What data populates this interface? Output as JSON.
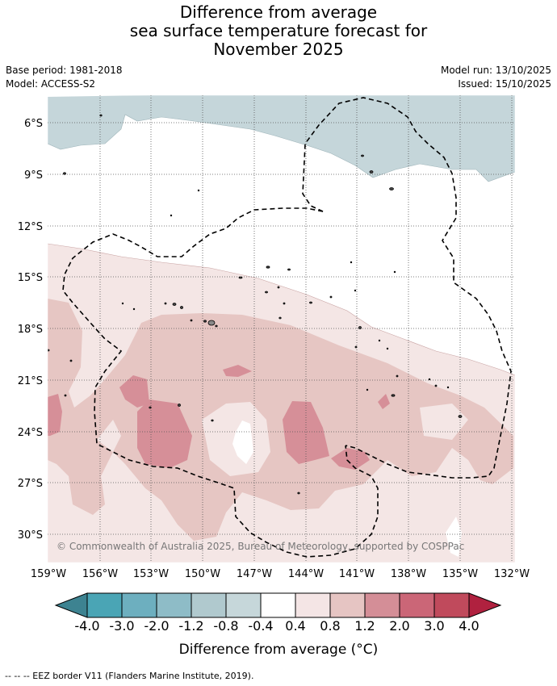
{
  "title": {
    "line1": "Difference from average",
    "line2": "sea surface temperature forecast for",
    "line3": "November 2025"
  },
  "info": {
    "base_period": "Base period: 1981-2018",
    "model": "Model: ACCESS-S2",
    "model_run": "Model run: 13/10/2025",
    "issued": "Issued: 15/10/2025"
  },
  "map": {
    "lat_labels": [
      "6°S",
      "9°S",
      "12°S",
      "15°S",
      "18°S",
      "21°S",
      "24°S",
      "27°S",
      "30°S"
    ],
    "lon_labels": [
      "159°W",
      "156°W",
      "153°W",
      "150°W",
      "147°W",
      "144°W",
      "141°W",
      "138°W",
      "135°W",
      "132°W"
    ],
    "copyright": "© Commonwealth of Australia 2025, Bureau of Meteorology, supported by COSPPac",
    "colors": {
      "cool_light": "#c5d6da",
      "warm_0": "#f4e6e5",
      "warm_1": "#e6c6c3",
      "warm_2": "#d68f98",
      "warm_3": "#ca6676"
    }
  },
  "colorbar": {
    "labels": [
      "-4.0",
      "-3.0",
      "-2.0",
      "-1.2",
      "-0.8",
      "-0.4",
      "0.4",
      "0.8",
      "1.2",
      "2.0",
      "3.0",
      "4.0"
    ],
    "colors": [
      "#3d8391",
      "#4aa5b5",
      "#6dafbf",
      "#8ebcc7",
      "#b0c9ce",
      "#c6d7da",
      "#ffffff",
      "#f4e5e5",
      "#e6c5c3",
      "#d48e97",
      "#cb6677",
      "#c04a5c",
      "#b0213f"
    ],
    "title": "Difference from average (°C)"
  },
  "footer": "--  --  -- EEZ border V11 (Flanders Marine Institute, 2019)."
}
